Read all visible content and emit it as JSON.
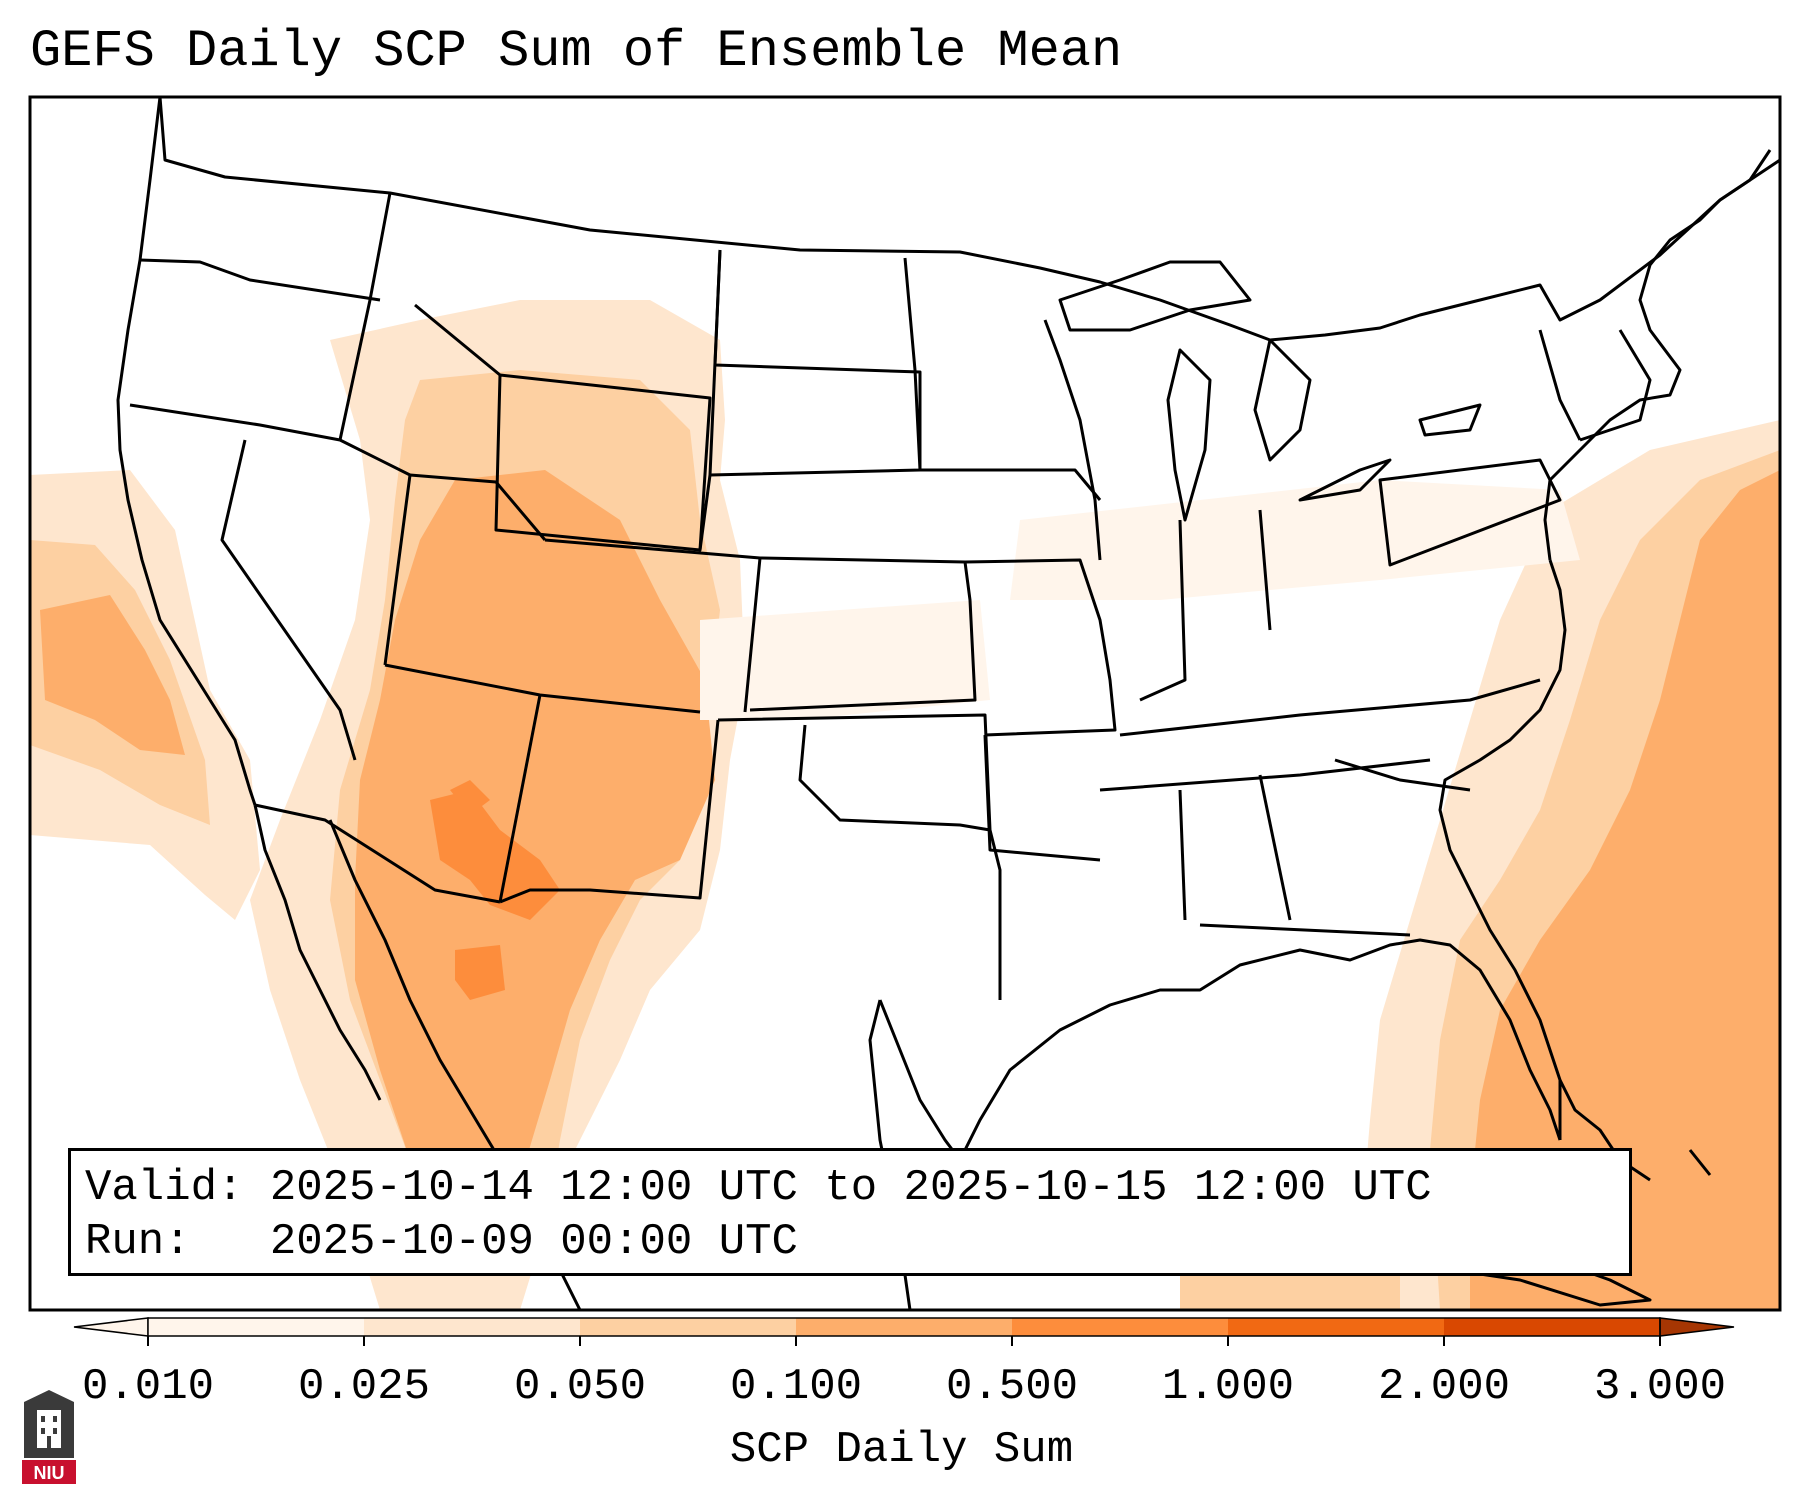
{
  "title": "GEFS Daily SCP Sum of Ensemble Mean",
  "info": {
    "valid": "Valid: 2025-10-14 12:00 UTC to 2025-10-15 12:00 UTC",
    "run": "Run:   2025-10-09 00:00 UTC"
  },
  "colorbar": {
    "label": "SCP Daily Sum",
    "ticks": [
      "0.010",
      "0.025",
      "0.050",
      "0.100",
      "0.500",
      "1.000",
      "2.000",
      "3.000"
    ],
    "colors": [
      "#fff5eb",
      "#fee6ce",
      "#fdd0a2",
      "#fdae6b",
      "#fd8d3c",
      "#f16913",
      "#d94801",
      "#a63603"
    ],
    "extend": "both"
  },
  "logo": {
    "text": "NIU"
  },
  "map": {
    "projection": "Lambert Conformal, CONUS",
    "field": "SCP daily sum (ensemble mean)",
    "max_region": "southern Arizona / western New Mexico",
    "elevated_regions": [
      "Four Corners / Colorado Plateau",
      "northern Mexico (Sonora/Chihuahua)",
      "Pacific off Baja California",
      "western Atlantic off the East Coast",
      "Caribbean / Bahamas",
      "Wyoming"
    ]
  }
}
